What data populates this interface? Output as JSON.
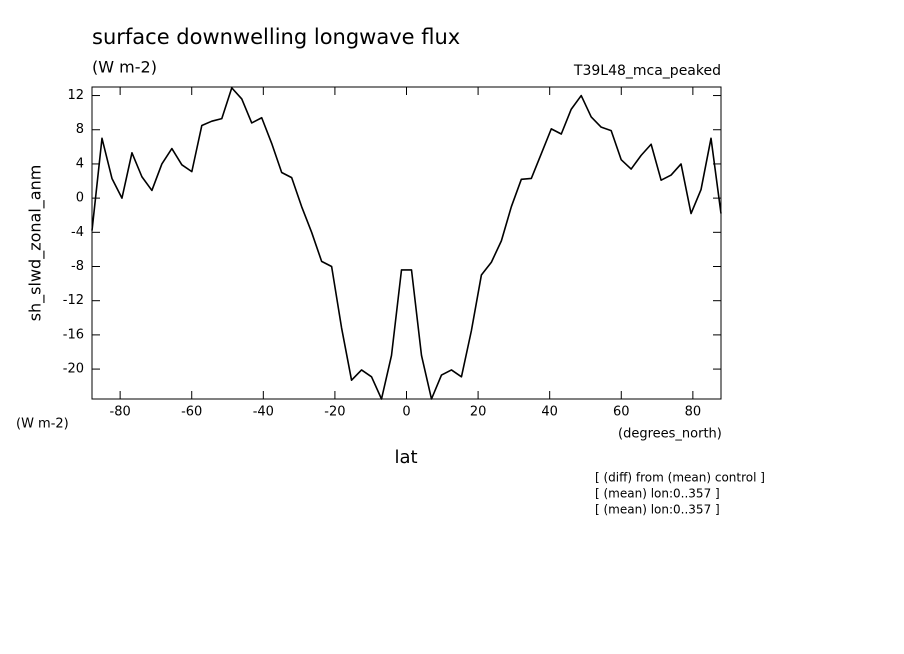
{
  "chart_data": {
    "type": "line",
    "title": "surface downwelling longwave flux",
    "units": "(W m-2)",
    "dataset": "T39L48_mca_peaked",
    "y_label": "sh_slwd_zonal_anm",
    "y_units": "(W m-2)",
    "x_label": "lat",
    "x_units": "(degrees_north)",
    "notes": [
      "[ (diff) from (mean) control ]",
      "[ (mean) lon:0..357 ]",
      "[ (mean) lon:0..357 ]"
    ],
    "x": [
      -87.86,
      -85.07,
      -82.28,
      -79.49,
      -76.7,
      -73.92,
      -71.13,
      -68.34,
      -65.55,
      -62.76,
      -59.97,
      -57.18,
      -54.39,
      -51.6,
      -48.81,
      -46.02,
      -43.24,
      -40.45,
      -37.66,
      -34.87,
      -32.08,
      -29.29,
      -26.5,
      -23.71,
      -20.92,
      -18.13,
      -15.35,
      -12.56,
      -9.77,
      -6.98,
      -4.19,
      -1.4,
      1.4,
      4.19,
      6.98,
      9.77,
      12.56,
      15.35,
      18.13,
      20.92,
      23.71,
      26.5,
      29.29,
      32.08,
      34.87,
      37.66,
      40.45,
      43.24,
      46.02,
      48.81,
      51.6,
      54.39,
      57.18,
      59.97,
      62.76,
      65.55,
      68.34,
      71.13,
      73.92,
      76.7,
      79.49,
      82.28,
      85.07,
      87.86
    ],
    "series": [
      {
        "color": "#000000",
        "values": [
          -3.8,
          7,
          2.3,
          0,
          5.3,
          2.5,
          0.9,
          4,
          5.8,
          3.9,
          3.1,
          8.5,
          9,
          9.3,
          12.9,
          11.6,
          8.8,
          9.4,
          6.4,
          3,
          2.4,
          -1,
          -4,
          -7.4,
          -8,
          -15.2,
          -21.3,
          -20.1,
          -20.9,
          -23.5,
          -18.4,
          -8.4,
          -8.4,
          -18.4,
          -23.5,
          -20.7,
          -20.1,
          -20.9,
          -15.5,
          -9,
          -7.5,
          -5,
          -1,
          2.2,
          2.3,
          5.2,
          8.1,
          7.5,
          10.4,
          12,
          9.5,
          8.3,
          7.9,
          4.5,
          3.4,
          5,
          6.3,
          2.1,
          2.7,
          4,
          -1.8,
          1,
          7,
          -1.8
        ]
      }
    ],
    "xlim": [
      -87.86,
      87.86
    ],
    "ylim": [
      -23.5,
      13
    ],
    "xticks": [
      -80,
      -60,
      -40,
      -20,
      0,
      20,
      40,
      60,
      80
    ],
    "yticks": [
      -20,
      -16,
      -12,
      -8,
      -4,
      0,
      4,
      8,
      12
    ]
  }
}
